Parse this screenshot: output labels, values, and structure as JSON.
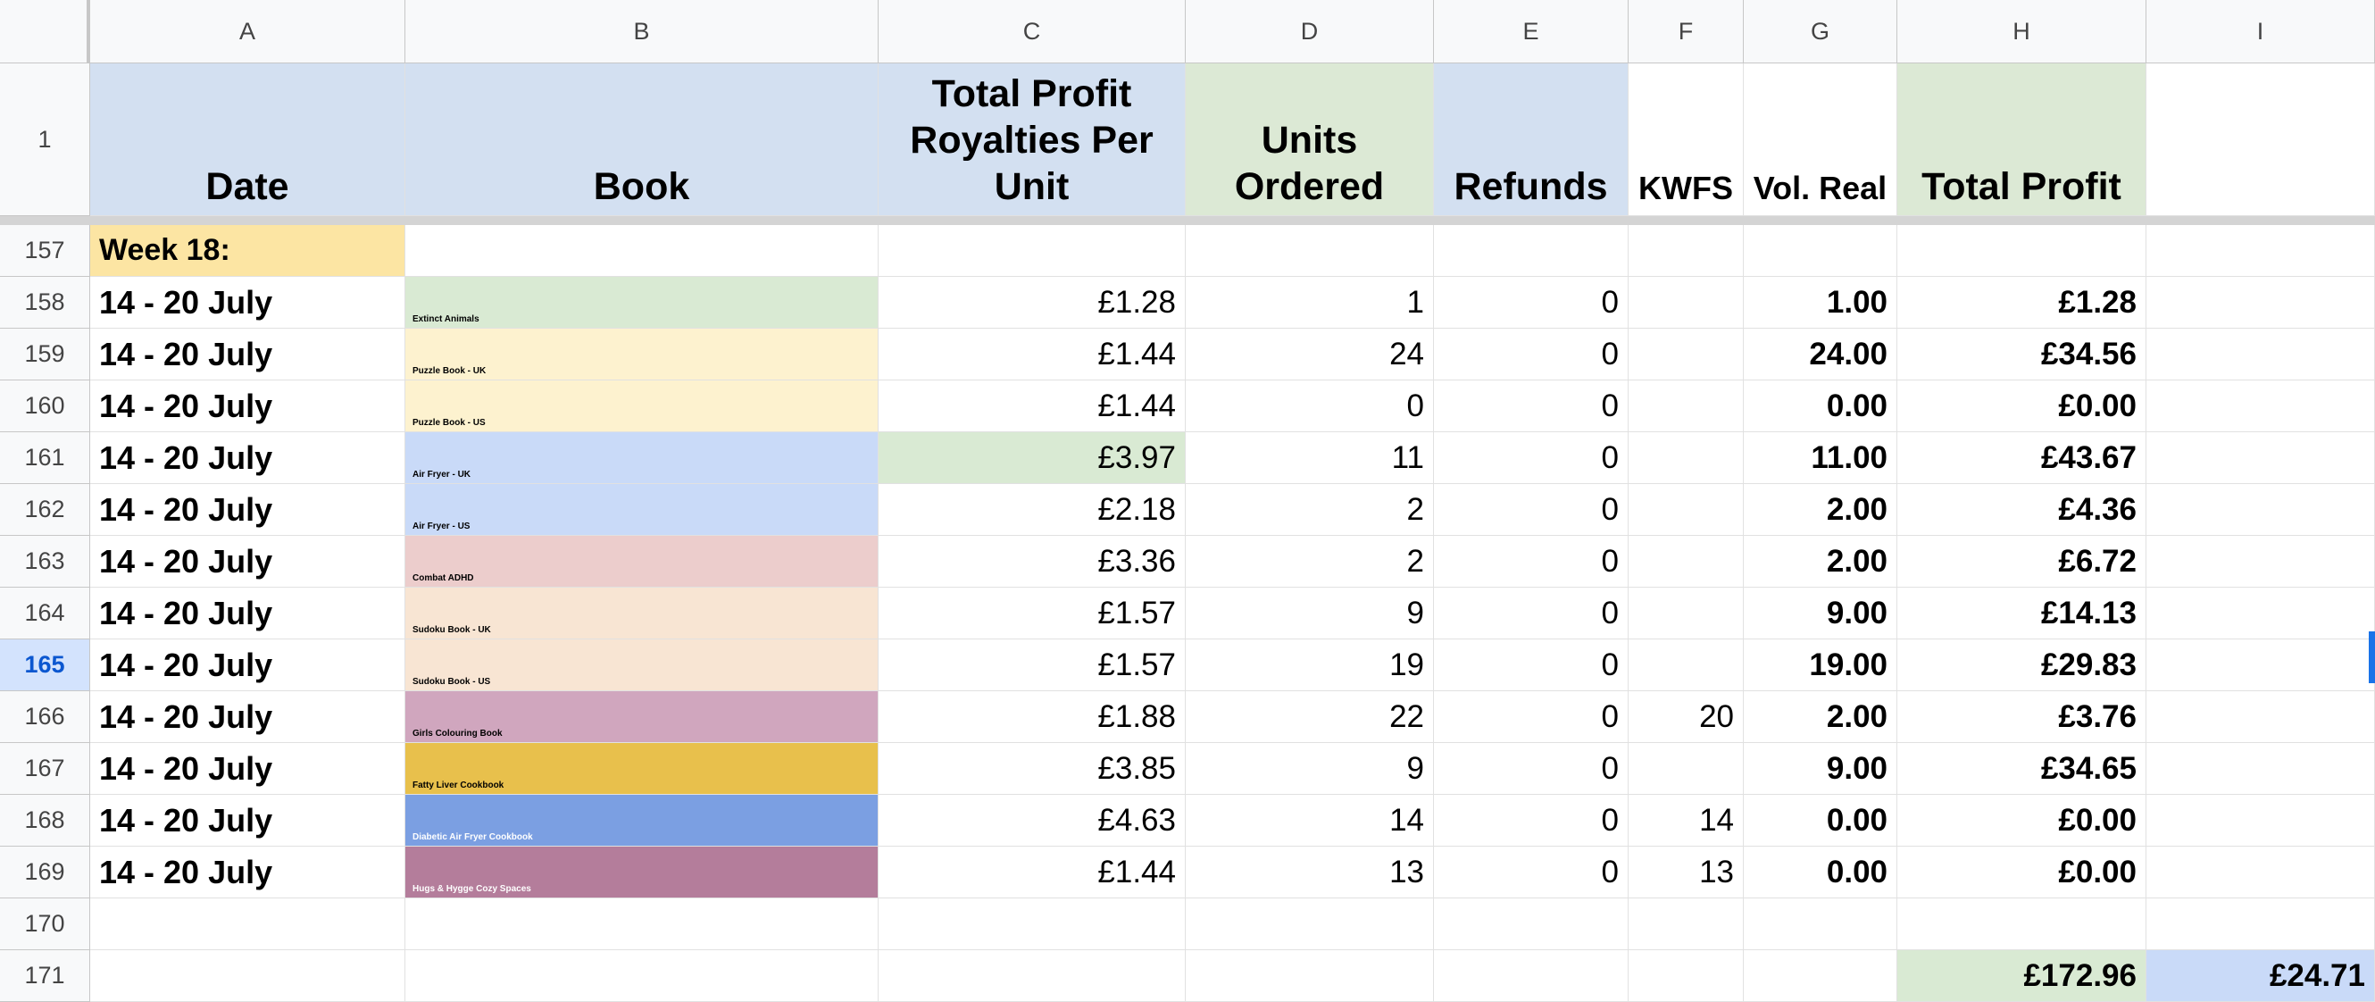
{
  "columns": [
    "A",
    "B",
    "C",
    "D",
    "E",
    "F",
    "G",
    "H",
    "I"
  ],
  "header_row": {
    "row_number": "1",
    "date": "Date",
    "book": "Book",
    "royalty": "Total Profit Royalties Per Unit",
    "units": "Units Ordered",
    "refunds": "Refunds",
    "kwfs": "KWFS",
    "vol_real": "Vol. Real",
    "total_profit": "Total Profit"
  },
  "week_row": {
    "row_number": "157",
    "label": "Week 18:"
  },
  "rows": [
    {
      "row_number": "158",
      "date": "14 - 20 July",
      "book": "Extinct Animals",
      "book_color": "#d9ead3",
      "book_text_color": "#000000",
      "royalty": "£1.28",
      "units": "1",
      "refunds": "0",
      "kwfs": "",
      "vol_real": "1.00",
      "total_profit": "£1.28"
    },
    {
      "row_number": "159",
      "date": "14 - 20 July",
      "book": "Puzzle Book - UK",
      "book_color": "#fdf2cf",
      "book_text_color": "#000000",
      "royalty": "£1.44",
      "units": "24",
      "refunds": "0",
      "kwfs": "",
      "vol_real": "24.00",
      "total_profit": "£34.56"
    },
    {
      "row_number": "160",
      "date": "14 - 20 July",
      "book": "Puzzle Book - US",
      "book_color": "#fdf2cf",
      "book_text_color": "#000000",
      "royalty": "£1.44",
      "units": "0",
      "refunds": "0",
      "kwfs": "",
      "vol_real": "0.00",
      "total_profit": "£0.00"
    },
    {
      "row_number": "161",
      "date": "14 - 20 July",
      "book": "Air Fryer - UK",
      "book_color": "#c9daf8",
      "book_text_color": "#000000",
      "royalty": "£3.97",
      "royalty_color": "#d9ead3",
      "units": "11",
      "refunds": "0",
      "kwfs": "",
      "vol_real": "11.00",
      "total_profit": "£43.67"
    },
    {
      "row_number": "162",
      "date": "14 - 20 July",
      "book": "Air Fryer - US",
      "book_color": "#c9daf8",
      "book_text_color": "#000000",
      "royalty": "£2.18",
      "units": "2",
      "refunds": "0",
      "kwfs": "",
      "vol_real": "2.00",
      "total_profit": "£4.36"
    },
    {
      "row_number": "163",
      "date": "14 - 20 July",
      "book": "Combat ADHD",
      "book_color": "#eccdcc",
      "book_text_color": "#000000",
      "royalty": "£3.36",
      "units": "2",
      "refunds": "0",
      "kwfs": "",
      "vol_real": "2.00",
      "total_profit": "£6.72"
    },
    {
      "row_number": "164",
      "date": "14 - 20 July",
      "book": "Sudoku Book - UK",
      "book_color": "#f8e5d3",
      "book_text_color": "#000000",
      "royalty": "£1.57",
      "units": "9",
      "refunds": "0",
      "kwfs": "",
      "vol_real": "9.00",
      "total_profit": "£14.13"
    },
    {
      "row_number": "165",
      "date": "14 - 20 July",
      "book": "Sudoku Book - US",
      "book_color": "#f8e5d3",
      "book_text_color": "#000000",
      "royalty": "£1.57",
      "units": "19",
      "refunds": "0",
      "kwfs": "",
      "vol_real": "19.00",
      "total_profit": "£29.83"
    },
    {
      "row_number": "166",
      "date": "14 - 20 July",
      "book": "Girls Colouring Book",
      "book_color": "#d0a6be",
      "book_text_color": "#000000",
      "royalty": "£1.88",
      "units": "22",
      "refunds": "0",
      "kwfs": "20",
      "vol_real": "2.00",
      "total_profit": "£3.76"
    },
    {
      "row_number": "167",
      "date": "14 - 20 July",
      "book": "Fatty Liver Cookbook",
      "book_color": "#e8c04c",
      "book_text_color": "#000000",
      "royalty": "£3.85",
      "units": "9",
      "refunds": "0",
      "kwfs": "",
      "vol_real": "9.00",
      "total_profit": "£34.65"
    },
    {
      "row_number": "168",
      "date": "14 - 20 July",
      "book": "Diabetic Air Fryer Cookbook",
      "book_color": "#7b9fe2",
      "book_text_color": "#ffffff",
      "royalty": "£4.63",
      "units": "14",
      "refunds": "0",
      "kwfs": "14",
      "vol_real": "0.00",
      "total_profit": "£0.00"
    },
    {
      "row_number": "169",
      "date": "14 - 20 July",
      "book": "Hugs & Hygge Cozy Spaces",
      "book_color": "#b47d9b",
      "book_text_color": "#ffffff",
      "royalty": "£1.44",
      "units": "13",
      "refunds": "0",
      "kwfs": "13",
      "vol_real": "0.00",
      "total_profit": "£0.00"
    }
  ],
  "empty_row": {
    "row_number": "170"
  },
  "totals_row": {
    "row_number": "171",
    "total_profit": "£172.96",
    "extra": "£24.71"
  },
  "active_row": "165",
  "colors": {
    "header_blue": "#d3e0f1",
    "header_green": "#dce9d5",
    "week_yellow": "#fce5a3",
    "total_green": "#d9ead3",
    "total_blue": "#c9daf8"
  }
}
